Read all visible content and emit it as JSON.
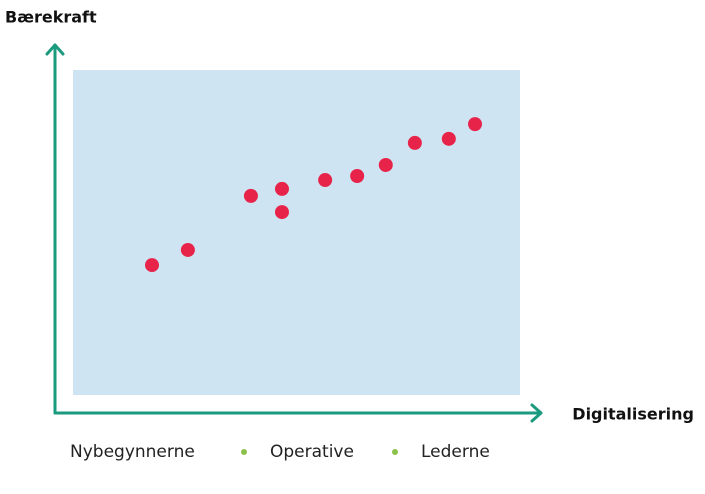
{
  "chart_data": {
    "type": "scatter",
    "y_label": "Bærekraft",
    "x_label": "Digitalisering",
    "groups": [
      "Nybegynnerne",
      "Operative",
      "Lederne"
    ],
    "color": "#e8234a",
    "xlim": [
      0,
      100
    ],
    "ylim": [
      0,
      100
    ],
    "x": [
      20.0,
      27.4,
      40.4,
      46.8,
      46.8,
      55.7,
      62.3,
      68.2,
      74.2,
      81.2,
      86.6
    ],
    "values": [
      40.2,
      44.3,
      59.0,
      60.9,
      54.6,
      63.3,
      64.4,
      67.4,
      73.4,
      74.5,
      78.5
    ]
  }
}
